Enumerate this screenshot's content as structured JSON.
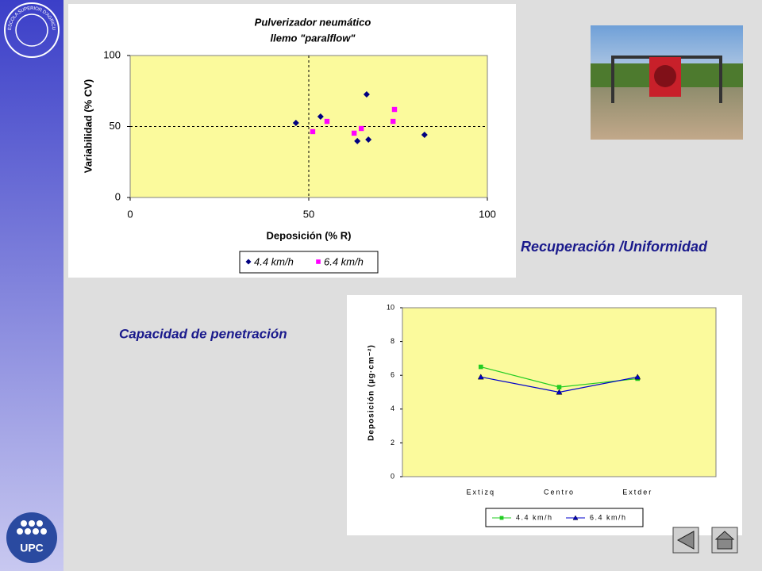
{
  "captions": {
    "recovery": "Recuperación /Uniformidad",
    "penetration": "Capacidad de penetración"
  },
  "logos": {
    "school": "ESCOLA SUPERIOR D'AGRICULTURA · BARCELONA",
    "university": "UPC"
  },
  "chart_data": [
    {
      "type": "scatter",
      "title": [
        "Pulverizador neumático",
        "llemo \"paralflow\""
      ],
      "xlabel": "Deposición (% R)",
      "ylabel": "Variabilidad (% CV)",
      "xlim": [
        0,
        100
      ],
      "xticks": [
        0,
        50,
        100
      ],
      "ylim": [
        0,
        100
      ],
      "yticks": [
        0,
        50,
        100
      ],
      "reference_lines": {
        "x": 50,
        "y": 50
      },
      "series": [
        {
          "name": "4.4 km/h",
          "color": "#000080",
          "marker": "diamond",
          "x": [
            46.4,
            53.3,
            66.2,
            63.6,
            66.7,
            82.4
          ],
          "values": [
            52.5,
            57,
            72.6,
            39.7,
            40.8,
            44.1
          ]
        },
        {
          "name": "6.4 km/h",
          "color": "#ff00ff",
          "marker": "square",
          "x": [
            51.1,
            55.1,
            62.7,
            64.7,
            74,
            73.6
          ],
          "values": [
            46.4,
            53.6,
            45.3,
            48.6,
            62,
            53.6
          ]
        }
      ]
    },
    {
      "type": "line",
      "ylabel": "Deposición (µg·cm⁻²)",
      "categories": [
        "Extizq",
        "Centro",
        "Extder"
      ],
      "ylim": [
        0,
        10
      ],
      "yticks": [
        0,
        2,
        4,
        6,
        8,
        10
      ],
      "series": [
        {
          "name": "4.4 km/h",
          "color": "#22cc22",
          "marker": "square",
          "values": [
            6.5,
            5.3,
            5.8
          ]
        },
        {
          "name": "6.4 km/h",
          "color": "#0000cc",
          "marker": "triangle",
          "values": [
            5.9,
            5.0,
            5.9
          ]
        }
      ]
    }
  ]
}
